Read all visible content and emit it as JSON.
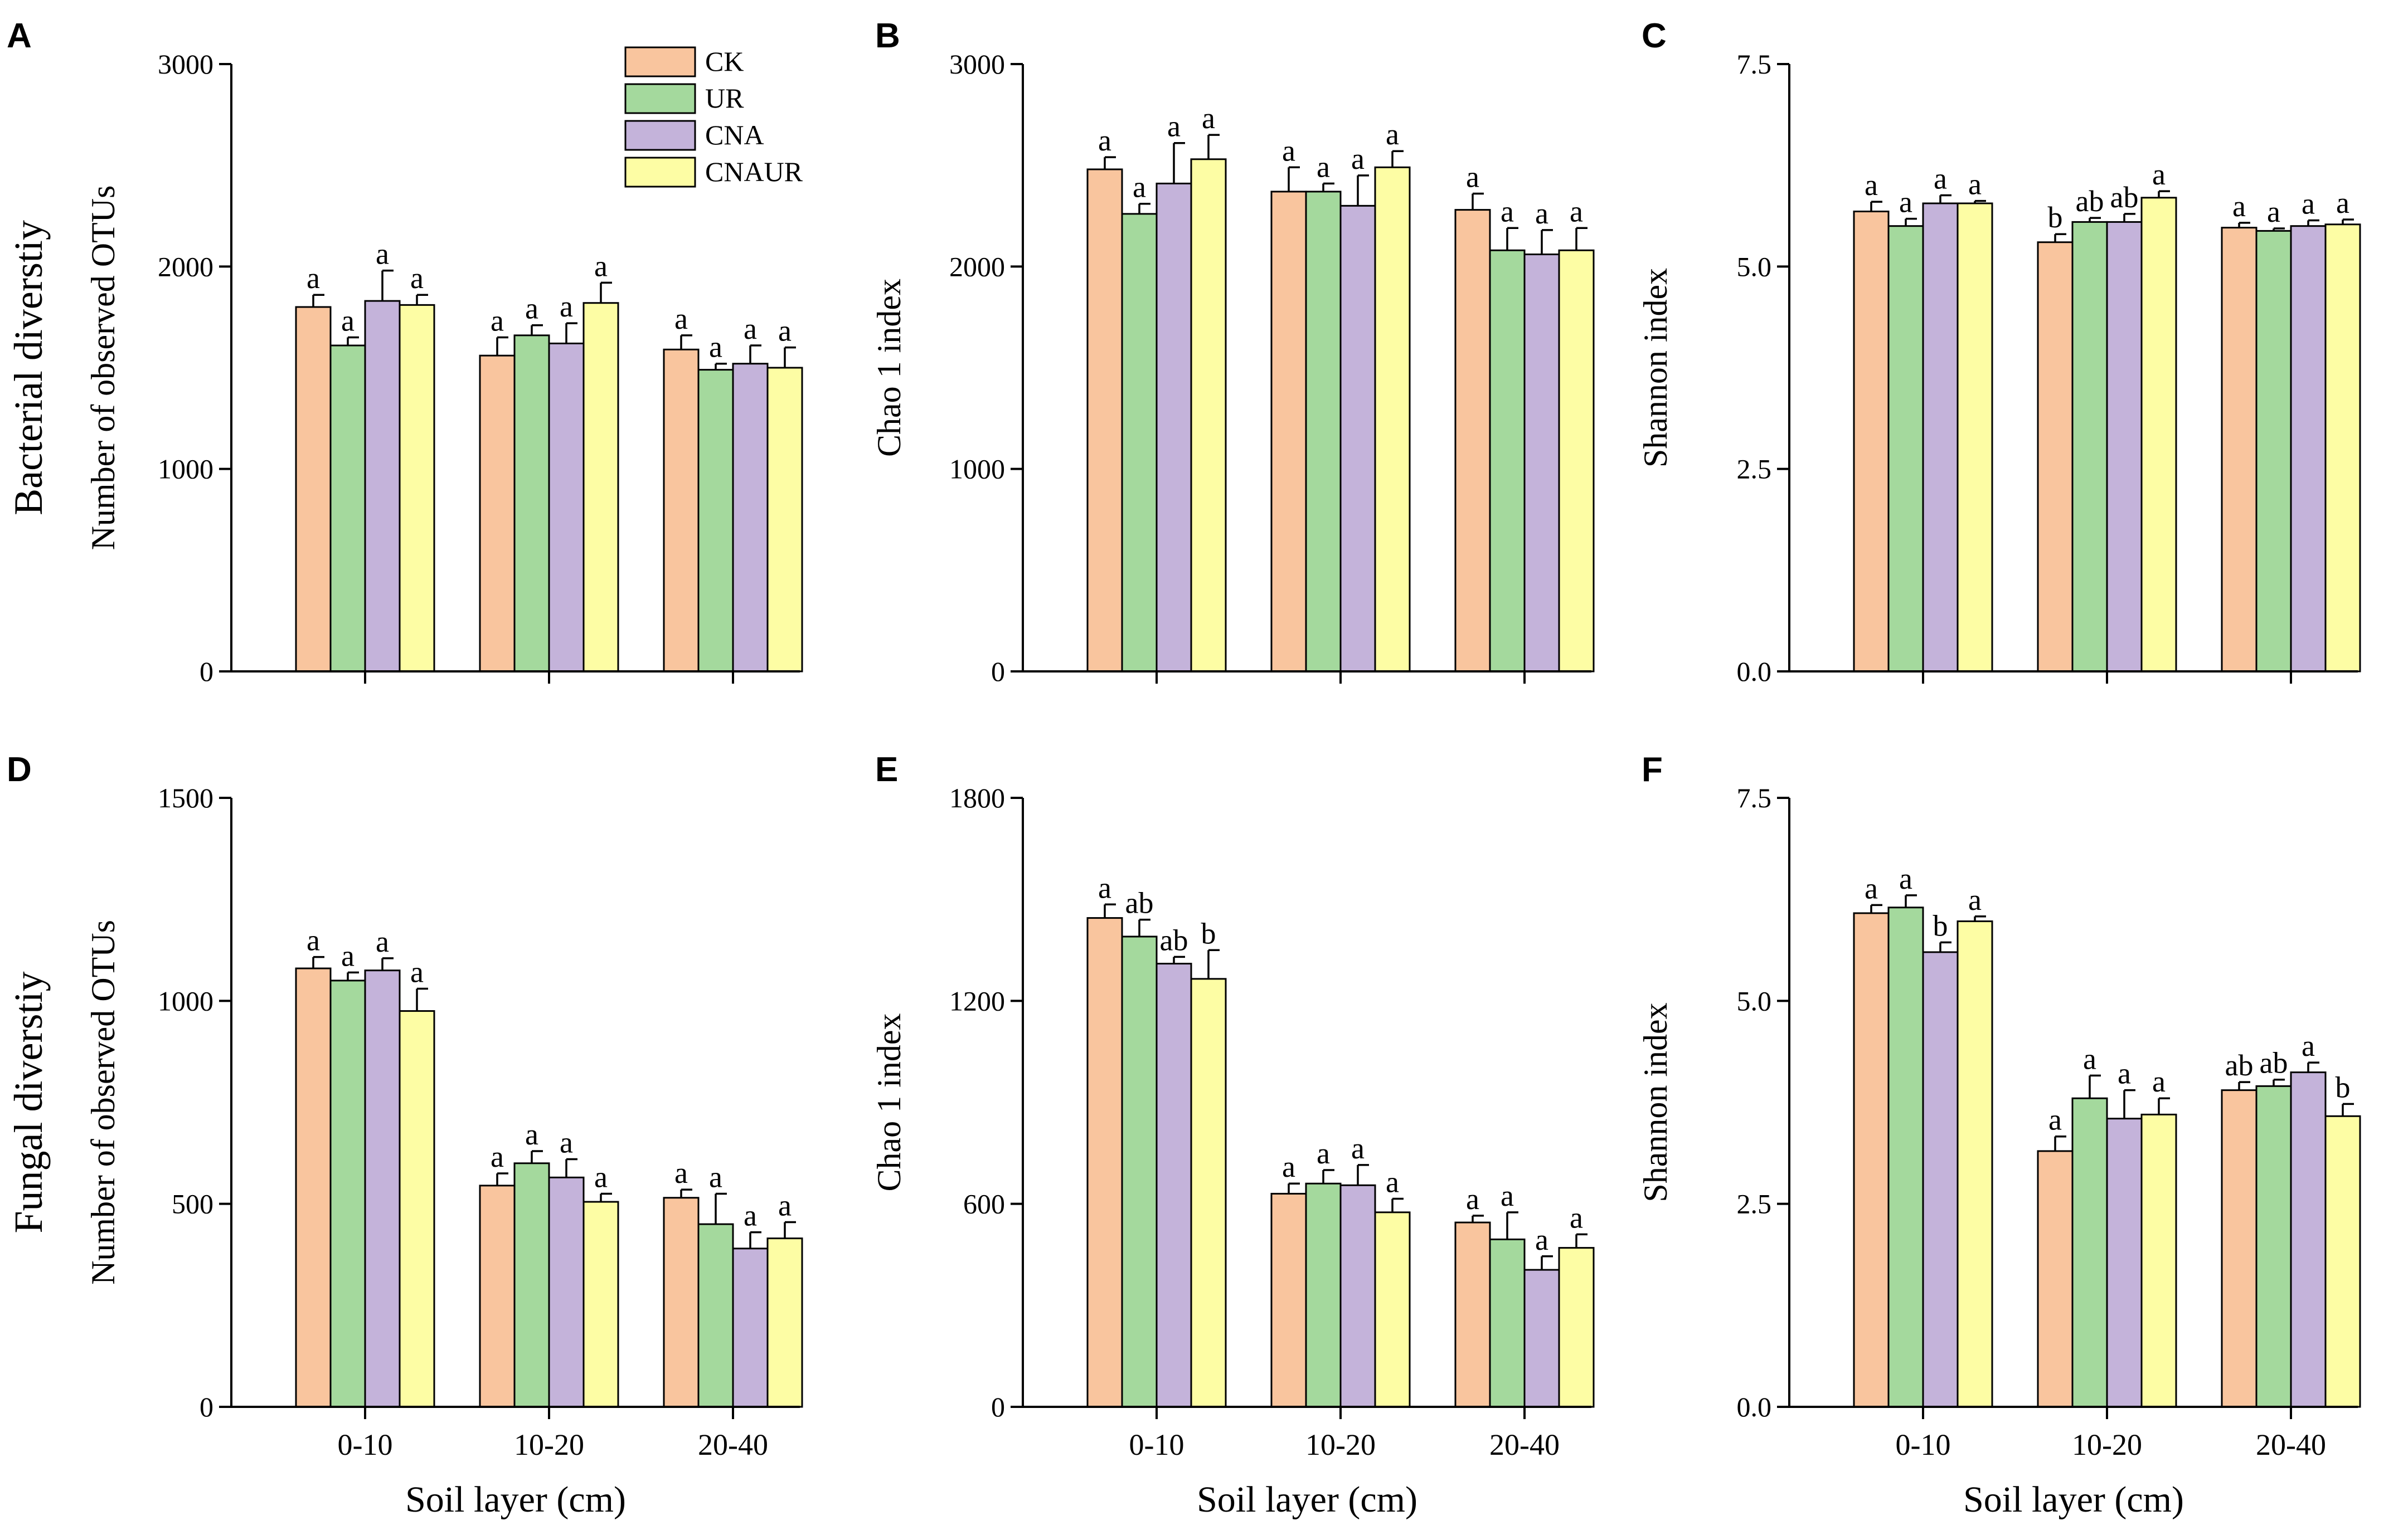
{
  "legend": [
    {
      "name": "CK",
      "color": "#F9C59E"
    },
    {
      "name": "UR",
      "color": "#A4D99D"
    },
    {
      "name": "CNA",
      "color": "#C4B3DA"
    },
    {
      "name": "CNAUR",
      "color": "#FDFDA4"
    }
  ],
  "row_labels": [
    "Bacterial diverstiy",
    "Fungal diverstiy"
  ],
  "xlabel": "Soil layer (cm)",
  "chart_data": [
    {
      "panel": "A",
      "type": "bar",
      "ylabel": "Number of observed OTUs",
      "ylim": [
        0,
        3000
      ],
      "yticks": [
        "0",
        "1000",
        "2000",
        "3000"
      ],
      "categories": [
        "0-10",
        "10-20",
        "20-40"
      ],
      "series": [
        {
          "name": "CK",
          "values": [
            1800,
            1560,
            1590
          ],
          "errors": [
            60,
            90,
            70
          ],
          "letters": [
            "a",
            "a",
            "a"
          ]
        },
        {
          "name": "UR",
          "values": [
            1610,
            1660,
            1490
          ],
          "errors": [
            40,
            50,
            30
          ],
          "letters": [
            "a",
            "a",
            "a"
          ]
        },
        {
          "name": "CNA",
          "values": [
            1830,
            1620,
            1520
          ],
          "errors": [
            150,
            100,
            90
          ],
          "letters": [
            "a",
            "a",
            "a"
          ]
        },
        {
          "name": "CNAUR",
          "values": [
            1810,
            1820,
            1500
          ],
          "errors": [
            50,
            100,
            100
          ],
          "letters": [
            "a",
            "a",
            "a"
          ]
        }
      ]
    },
    {
      "panel": "B",
      "type": "bar",
      "ylabel": "Chao 1 index",
      "ylim": [
        0,
        3000
      ],
      "yticks": [
        "0",
        "1000",
        "2000",
        "3000"
      ],
      "categories": [
        "0-10",
        "10-20",
        "20-40"
      ],
      "series": [
        {
          "name": "CK",
          "values": [
            2480,
            2370,
            2280
          ],
          "errors": [
            60,
            120,
            80
          ],
          "letters": [
            "a",
            "a",
            "a"
          ]
        },
        {
          "name": "UR",
          "values": [
            2260,
            2370,
            2080
          ],
          "errors": [
            50,
            40,
            110
          ],
          "letters": [
            "a",
            "a",
            "a"
          ]
        },
        {
          "name": "CNA",
          "values": [
            2410,
            2300,
            2060
          ],
          "errors": [
            200,
            150,
            120
          ],
          "letters": [
            "a",
            "a",
            "a"
          ]
        },
        {
          "name": "CNAUR",
          "values": [
            2530,
            2490,
            2080
          ],
          "errors": [
            120,
            80,
            110
          ],
          "letters": [
            "a",
            "a",
            "a"
          ]
        }
      ]
    },
    {
      "panel": "C",
      "type": "bar",
      "ylabel": "Shannon index",
      "ylim": [
        0,
        7.5
      ],
      "yticks": [
        "0.0",
        "2.5",
        "5.0",
        "7.5"
      ],
      "categories": [
        "0-10",
        "10-20",
        "20-40"
      ],
      "series": [
        {
          "name": "CK",
          "values": [
            5.68,
            5.3,
            5.48
          ],
          "errors": [
            0.12,
            0.1,
            0.06
          ],
          "letters": [
            "a",
            "b",
            "a"
          ]
        },
        {
          "name": "UR",
          "values": [
            5.5,
            5.55,
            5.44
          ],
          "errors": [
            0.09,
            0.05,
            0.03
          ],
          "letters": [
            "a",
            "ab",
            "a"
          ]
        },
        {
          "name": "CNA",
          "values": [
            5.78,
            5.55,
            5.5
          ],
          "errors": [
            0.1,
            0.1,
            0.07
          ],
          "letters": [
            "a",
            "ab",
            "a"
          ]
        },
        {
          "name": "CNAUR",
          "values": [
            5.78,
            5.85,
            5.52
          ],
          "errors": [
            0.03,
            0.08,
            0.06
          ],
          "letters": [
            "a",
            "a",
            "a"
          ]
        }
      ]
    },
    {
      "panel": "D",
      "type": "bar",
      "ylabel": "Number of observed OTUs",
      "ylim": [
        0,
        1500
      ],
      "yticks": [
        "0",
        "500",
        "1000",
        "1500"
      ],
      "categories": [
        "0-10",
        "10-20",
        "20-40"
      ],
      "series": [
        {
          "name": "CK",
          "values": [
            1080,
            545,
            515
          ],
          "errors": [
            28,
            30,
            20
          ],
          "letters": [
            "a",
            "a",
            "a"
          ]
        },
        {
          "name": "UR",
          "values": [
            1050,
            600,
            450
          ],
          "errors": [
            20,
            30,
            75
          ],
          "letters": [
            "a",
            "a",
            "a"
          ]
        },
        {
          "name": "CNA",
          "values": [
            1075,
            565,
            390
          ],
          "errors": [
            30,
            45,
            40
          ],
          "letters": [
            "a",
            "a",
            "a"
          ]
        },
        {
          "name": "CNAUR",
          "values": [
            975,
            505,
            415
          ],
          "errors": [
            55,
            20,
            40
          ],
          "letters": [
            "a",
            "a",
            "a"
          ]
        }
      ]
    },
    {
      "panel": "E",
      "type": "bar",
      "ylabel": "Chao 1 index",
      "ylim": [
        0,
        1800
      ],
      "yticks": [
        "0",
        "600",
        "1200",
        "1800"
      ],
      "categories": [
        "0-10",
        "10-20",
        "20-40"
      ],
      "series": [
        {
          "name": "CK",
          "values": [
            1445,
            630,
            545
          ],
          "errors": [
            40,
            30,
            20
          ],
          "letters": [
            "a",
            "a",
            "a"
          ]
        },
        {
          "name": "UR",
          "values": [
            1390,
            660,
            495
          ],
          "errors": [
            50,
            40,
            80
          ],
          "letters": [
            "ab",
            "a",
            "a"
          ]
        },
        {
          "name": "CNA",
          "values": [
            1310,
            655,
            405
          ],
          "errors": [
            20,
            60,
            40
          ],
          "letters": [
            "ab",
            "a",
            "a"
          ]
        },
        {
          "name": "CNAUR",
          "values": [
            1265,
            575,
            470
          ],
          "errors": [
            85,
            40,
            40
          ],
          "letters": [
            "b",
            "a",
            "a"
          ]
        }
      ]
    },
    {
      "panel": "F",
      "type": "bar",
      "ylabel": "Shannon index",
      "ylim": [
        0,
        7.5
      ],
      "yticks": [
        "0.0",
        "2.5",
        "5.0",
        "7.5"
      ],
      "categories": [
        "0-10",
        "10-20",
        "20-40"
      ],
      "series": [
        {
          "name": "CK",
          "values": [
            6.08,
            3.15,
            3.9
          ],
          "errors": [
            0.1,
            0.18,
            0.1
          ],
          "letters": [
            "a",
            "a",
            "ab"
          ]
        },
        {
          "name": "UR",
          "values": [
            6.15,
            3.8,
            3.95
          ],
          "errors": [
            0.15,
            0.28,
            0.08
          ],
          "letters": [
            "a",
            "a",
            "ab"
          ]
        },
        {
          "name": "CNA",
          "values": [
            5.6,
            3.55,
            4.12
          ],
          "errors": [
            0.12,
            0.35,
            0.12
          ],
          "letters": [
            "b",
            "a",
            "a"
          ]
        },
        {
          "name": "CNAUR",
          "values": [
            5.98,
            3.6,
            3.58
          ],
          "errors": [
            0.06,
            0.2,
            0.15
          ],
          "letters": [
            "a",
            "a",
            "b"
          ]
        }
      ]
    }
  ]
}
